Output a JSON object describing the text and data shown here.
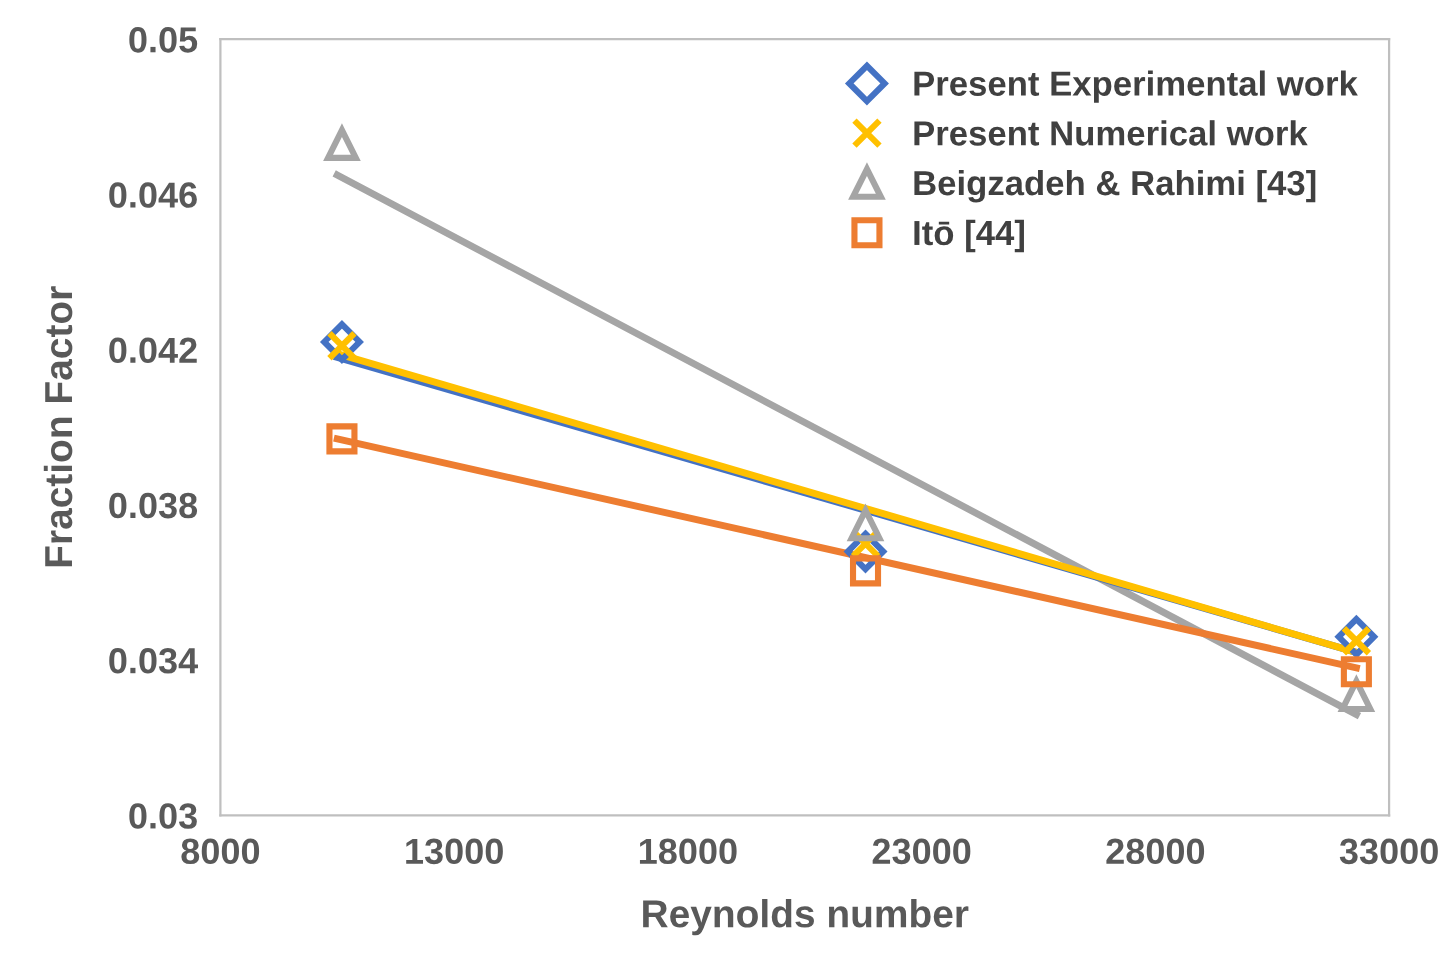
{
  "chart_data": {
    "type": "scatter",
    "xlabel": "Reynolds number",
    "ylabel": "Fraction Factor",
    "xlim": [
      8000,
      33000
    ],
    "xticks": [
      8000,
      13000,
      18000,
      23000,
      28000,
      33000
    ],
    "ylim": [
      0.03,
      0.05
    ],
    "yticks": [
      0.03,
      0.034,
      0.038,
      0.042,
      0.046,
      0.05
    ],
    "grid": false,
    "legend": "top right",
    "series": [
      {
        "type": "line",
        "marker": "none",
        "color": "#a5a5a5",
        "x": [
          10500,
          32300
        ],
        "values": [
          0.0465,
          0.0326
        ]
      },
      {
        "type": "line",
        "marker": "none",
        "color": "#ed7d31",
        "x": [
          10500,
          32300
        ],
        "values": [
          0.0397,
          0.0338
        ]
      },
      {
        "type": "line",
        "marker": "none",
        "color": "#4472c4",
        "x": [
          10500,
          32300
        ],
        "values": [
          0.0418,
          0.0342
        ]
      },
      {
        "type": "line",
        "marker": "none",
        "color": "#ffc000",
        "x": [
          10500,
          32300
        ],
        "values": [
          0.0419,
          0.0342
        ]
      },
      {
        "name": "Present Experimental work",
        "marker": "diamond",
        "color": "#4472c4",
        "x": [
          10600,
          21800,
          32300
        ],
        "values": [
          0.0422,
          0.0368,
          0.0346
        ]
      },
      {
        "name": "Present Numerical work",
        "marker": "cross",
        "color": "#ffc000",
        "x": [
          10600,
          21800,
          32300
        ],
        "values": [
          0.0421,
          0.037,
          0.0345
        ]
      },
      {
        "name": "Beigzadeh & Rahimi [43]",
        "marker": "triangle",
        "color": "#a5a5a5",
        "x": [
          10600,
          21800,
          32300
        ],
        "values": [
          0.0473,
          0.0375,
          0.0331
        ]
      },
      {
        "name": "Itō [44]",
        "marker": "square",
        "color": "#ed7d31",
        "x": [
          10600,
          21800,
          32300
        ],
        "values": [
          0.0397,
          0.0363,
          0.0337
        ]
      }
    ]
  }
}
